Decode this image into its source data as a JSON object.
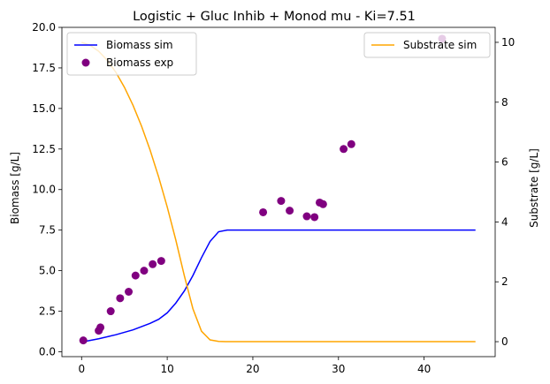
{
  "chart_data": {
    "type": "line",
    "title": "Logistic + Gluc Inhib + Monod mu - Ki=7.51",
    "xlabel": "",
    "ylabel": "Biomass [g/L]",
    "y2label": "Substrate [g/L]",
    "xlim": [
      -2.3,
      48.3
    ],
    "ylim": [
      -0.3,
      20.0
    ],
    "y2lim": [
      -0.5,
      10.5
    ],
    "x_ticks": [
      0,
      10,
      20,
      30,
      40
    ],
    "y_ticks": [
      0.0,
      2.5,
      5.0,
      7.5,
      10.0,
      12.5,
      15.0,
      17.5,
      20.0
    ],
    "y_tick_labels": [
      "0.0",
      "2.5",
      "5.0",
      "7.5",
      "10.0",
      "12.5",
      "15.0",
      "17.5",
      "20.0"
    ],
    "y2_ticks": [
      0,
      2,
      4,
      6,
      8,
      10
    ],
    "grid": false,
    "legends": [
      {
        "placement": "upper-left",
        "entries": [
          "Biomass sim",
          "Biomass exp"
        ]
      },
      {
        "placement": "upper-right",
        "entries": [
          "Substrate sim"
        ]
      }
    ],
    "series": [
      {
        "name": "Biomass sim",
        "axis": "left",
        "style": "line",
        "color": "#0000ff",
        "x": [
          0,
          2,
          4,
          6,
          8,
          9,
          10,
          11,
          12,
          13,
          14,
          15,
          16,
          17,
          18,
          20,
          25,
          30,
          35,
          40,
          46
        ],
        "y": [
          0.6,
          0.8,
          1.05,
          1.35,
          1.75,
          2.0,
          2.4,
          3.0,
          3.75,
          4.7,
          5.8,
          6.8,
          7.4,
          7.5,
          7.5,
          7.5,
          7.5,
          7.5,
          7.5,
          7.5,
          7.5
        ]
      },
      {
        "name": "Biomass exp",
        "axis": "left",
        "style": "scatter",
        "color": "#800080",
        "x": [
          0.2,
          2.0,
          2.2,
          3.4,
          4.5,
          5.5,
          6.3,
          7.3,
          8.3,
          9.3,
          21.2,
          23.3,
          24.3,
          26.3,
          27.2,
          27.8,
          28.2,
          30.6,
          31.5,
          42.1
        ],
        "y": [
          0.7,
          1.3,
          1.5,
          2.5,
          3.3,
          3.7,
          4.7,
          5.0,
          5.4,
          5.6,
          8.6,
          9.3,
          8.7,
          8.35,
          8.3,
          9.2,
          9.1,
          12.5,
          12.8,
          19.3
        ]
      },
      {
        "name": "Substrate sim",
        "axis": "right",
        "style": "line",
        "color": "#ffa500",
        "x": [
          0,
          1,
          2,
          3,
          4,
          5,
          6,
          7,
          8,
          9,
          10,
          11,
          12,
          13,
          14,
          15,
          16,
          17,
          18,
          20,
          25,
          30,
          35,
          40,
          46
        ],
        "y": [
          10.0,
          9.9,
          9.7,
          9.4,
          9.0,
          8.5,
          7.9,
          7.2,
          6.4,
          5.5,
          4.5,
          3.4,
          2.2,
          1.1,
          0.35,
          0.06,
          0.01,
          0.0,
          0.0,
          0.0,
          0.0,
          0.0,
          0.0,
          0.0,
          0.0
        ]
      }
    ]
  }
}
